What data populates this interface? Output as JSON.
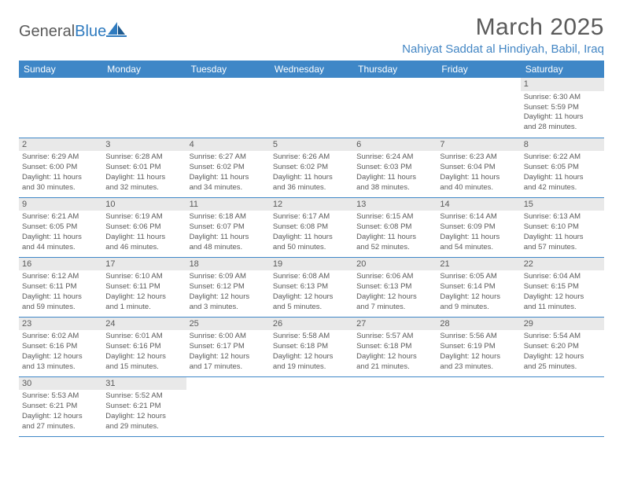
{
  "brand": {
    "part1": "General",
    "part2": "Blue"
  },
  "title": "March 2025",
  "location": "Nahiyat Saddat al Hindiyah, Babil, Iraq",
  "colors": {
    "header_bg": "#3f87c7",
    "header_text": "#ffffff",
    "accent": "#2f7bbf",
    "divider": "#3f87c7",
    "daynum_bg": "#e9e9e9",
    "body_text": "#5a5a5a"
  },
  "dayHeaders": [
    "Sunday",
    "Monday",
    "Tuesday",
    "Wednesday",
    "Thursday",
    "Friday",
    "Saturday"
  ],
  "weeks": [
    [
      null,
      null,
      null,
      null,
      null,
      null,
      {
        "n": "1",
        "sunrise": "Sunrise: 6:30 AM",
        "sunset": "Sunset: 5:59 PM",
        "day1": "Daylight: 11 hours",
        "day2": "and 28 minutes."
      }
    ],
    [
      {
        "n": "2",
        "sunrise": "Sunrise: 6:29 AM",
        "sunset": "Sunset: 6:00 PM",
        "day1": "Daylight: 11 hours",
        "day2": "and 30 minutes."
      },
      {
        "n": "3",
        "sunrise": "Sunrise: 6:28 AM",
        "sunset": "Sunset: 6:01 PM",
        "day1": "Daylight: 11 hours",
        "day2": "and 32 minutes."
      },
      {
        "n": "4",
        "sunrise": "Sunrise: 6:27 AM",
        "sunset": "Sunset: 6:02 PM",
        "day1": "Daylight: 11 hours",
        "day2": "and 34 minutes."
      },
      {
        "n": "5",
        "sunrise": "Sunrise: 6:26 AM",
        "sunset": "Sunset: 6:02 PM",
        "day1": "Daylight: 11 hours",
        "day2": "and 36 minutes."
      },
      {
        "n": "6",
        "sunrise": "Sunrise: 6:24 AM",
        "sunset": "Sunset: 6:03 PM",
        "day1": "Daylight: 11 hours",
        "day2": "and 38 minutes."
      },
      {
        "n": "7",
        "sunrise": "Sunrise: 6:23 AM",
        "sunset": "Sunset: 6:04 PM",
        "day1": "Daylight: 11 hours",
        "day2": "and 40 minutes."
      },
      {
        "n": "8",
        "sunrise": "Sunrise: 6:22 AM",
        "sunset": "Sunset: 6:05 PM",
        "day1": "Daylight: 11 hours",
        "day2": "and 42 minutes."
      }
    ],
    [
      {
        "n": "9",
        "sunrise": "Sunrise: 6:21 AM",
        "sunset": "Sunset: 6:05 PM",
        "day1": "Daylight: 11 hours",
        "day2": "and 44 minutes."
      },
      {
        "n": "10",
        "sunrise": "Sunrise: 6:19 AM",
        "sunset": "Sunset: 6:06 PM",
        "day1": "Daylight: 11 hours",
        "day2": "and 46 minutes."
      },
      {
        "n": "11",
        "sunrise": "Sunrise: 6:18 AM",
        "sunset": "Sunset: 6:07 PM",
        "day1": "Daylight: 11 hours",
        "day2": "and 48 minutes."
      },
      {
        "n": "12",
        "sunrise": "Sunrise: 6:17 AM",
        "sunset": "Sunset: 6:08 PM",
        "day1": "Daylight: 11 hours",
        "day2": "and 50 minutes."
      },
      {
        "n": "13",
        "sunrise": "Sunrise: 6:15 AM",
        "sunset": "Sunset: 6:08 PM",
        "day1": "Daylight: 11 hours",
        "day2": "and 52 minutes."
      },
      {
        "n": "14",
        "sunrise": "Sunrise: 6:14 AM",
        "sunset": "Sunset: 6:09 PM",
        "day1": "Daylight: 11 hours",
        "day2": "and 54 minutes."
      },
      {
        "n": "15",
        "sunrise": "Sunrise: 6:13 AM",
        "sunset": "Sunset: 6:10 PM",
        "day1": "Daylight: 11 hours",
        "day2": "and 57 minutes."
      }
    ],
    [
      {
        "n": "16",
        "sunrise": "Sunrise: 6:12 AM",
        "sunset": "Sunset: 6:11 PM",
        "day1": "Daylight: 11 hours",
        "day2": "and 59 minutes."
      },
      {
        "n": "17",
        "sunrise": "Sunrise: 6:10 AM",
        "sunset": "Sunset: 6:11 PM",
        "day1": "Daylight: 12 hours",
        "day2": "and 1 minute."
      },
      {
        "n": "18",
        "sunrise": "Sunrise: 6:09 AM",
        "sunset": "Sunset: 6:12 PM",
        "day1": "Daylight: 12 hours",
        "day2": "and 3 minutes."
      },
      {
        "n": "19",
        "sunrise": "Sunrise: 6:08 AM",
        "sunset": "Sunset: 6:13 PM",
        "day1": "Daylight: 12 hours",
        "day2": "and 5 minutes."
      },
      {
        "n": "20",
        "sunrise": "Sunrise: 6:06 AM",
        "sunset": "Sunset: 6:13 PM",
        "day1": "Daylight: 12 hours",
        "day2": "and 7 minutes."
      },
      {
        "n": "21",
        "sunrise": "Sunrise: 6:05 AM",
        "sunset": "Sunset: 6:14 PM",
        "day1": "Daylight: 12 hours",
        "day2": "and 9 minutes."
      },
      {
        "n": "22",
        "sunrise": "Sunrise: 6:04 AM",
        "sunset": "Sunset: 6:15 PM",
        "day1": "Daylight: 12 hours",
        "day2": "and 11 minutes."
      }
    ],
    [
      {
        "n": "23",
        "sunrise": "Sunrise: 6:02 AM",
        "sunset": "Sunset: 6:16 PM",
        "day1": "Daylight: 12 hours",
        "day2": "and 13 minutes."
      },
      {
        "n": "24",
        "sunrise": "Sunrise: 6:01 AM",
        "sunset": "Sunset: 6:16 PM",
        "day1": "Daylight: 12 hours",
        "day2": "and 15 minutes."
      },
      {
        "n": "25",
        "sunrise": "Sunrise: 6:00 AM",
        "sunset": "Sunset: 6:17 PM",
        "day1": "Daylight: 12 hours",
        "day2": "and 17 minutes."
      },
      {
        "n": "26",
        "sunrise": "Sunrise: 5:58 AM",
        "sunset": "Sunset: 6:18 PM",
        "day1": "Daylight: 12 hours",
        "day2": "and 19 minutes."
      },
      {
        "n": "27",
        "sunrise": "Sunrise: 5:57 AM",
        "sunset": "Sunset: 6:18 PM",
        "day1": "Daylight: 12 hours",
        "day2": "and 21 minutes."
      },
      {
        "n": "28",
        "sunrise": "Sunrise: 5:56 AM",
        "sunset": "Sunset: 6:19 PM",
        "day1": "Daylight: 12 hours",
        "day2": "and 23 minutes."
      },
      {
        "n": "29",
        "sunrise": "Sunrise: 5:54 AM",
        "sunset": "Sunset: 6:20 PM",
        "day1": "Daylight: 12 hours",
        "day2": "and 25 minutes."
      }
    ],
    [
      {
        "n": "30",
        "sunrise": "Sunrise: 5:53 AM",
        "sunset": "Sunset: 6:21 PM",
        "day1": "Daylight: 12 hours",
        "day2": "and 27 minutes."
      },
      {
        "n": "31",
        "sunrise": "Sunrise: 5:52 AM",
        "sunset": "Sunset: 6:21 PM",
        "day1": "Daylight: 12 hours",
        "day2": "and 29 minutes."
      },
      null,
      null,
      null,
      null,
      null
    ]
  ]
}
